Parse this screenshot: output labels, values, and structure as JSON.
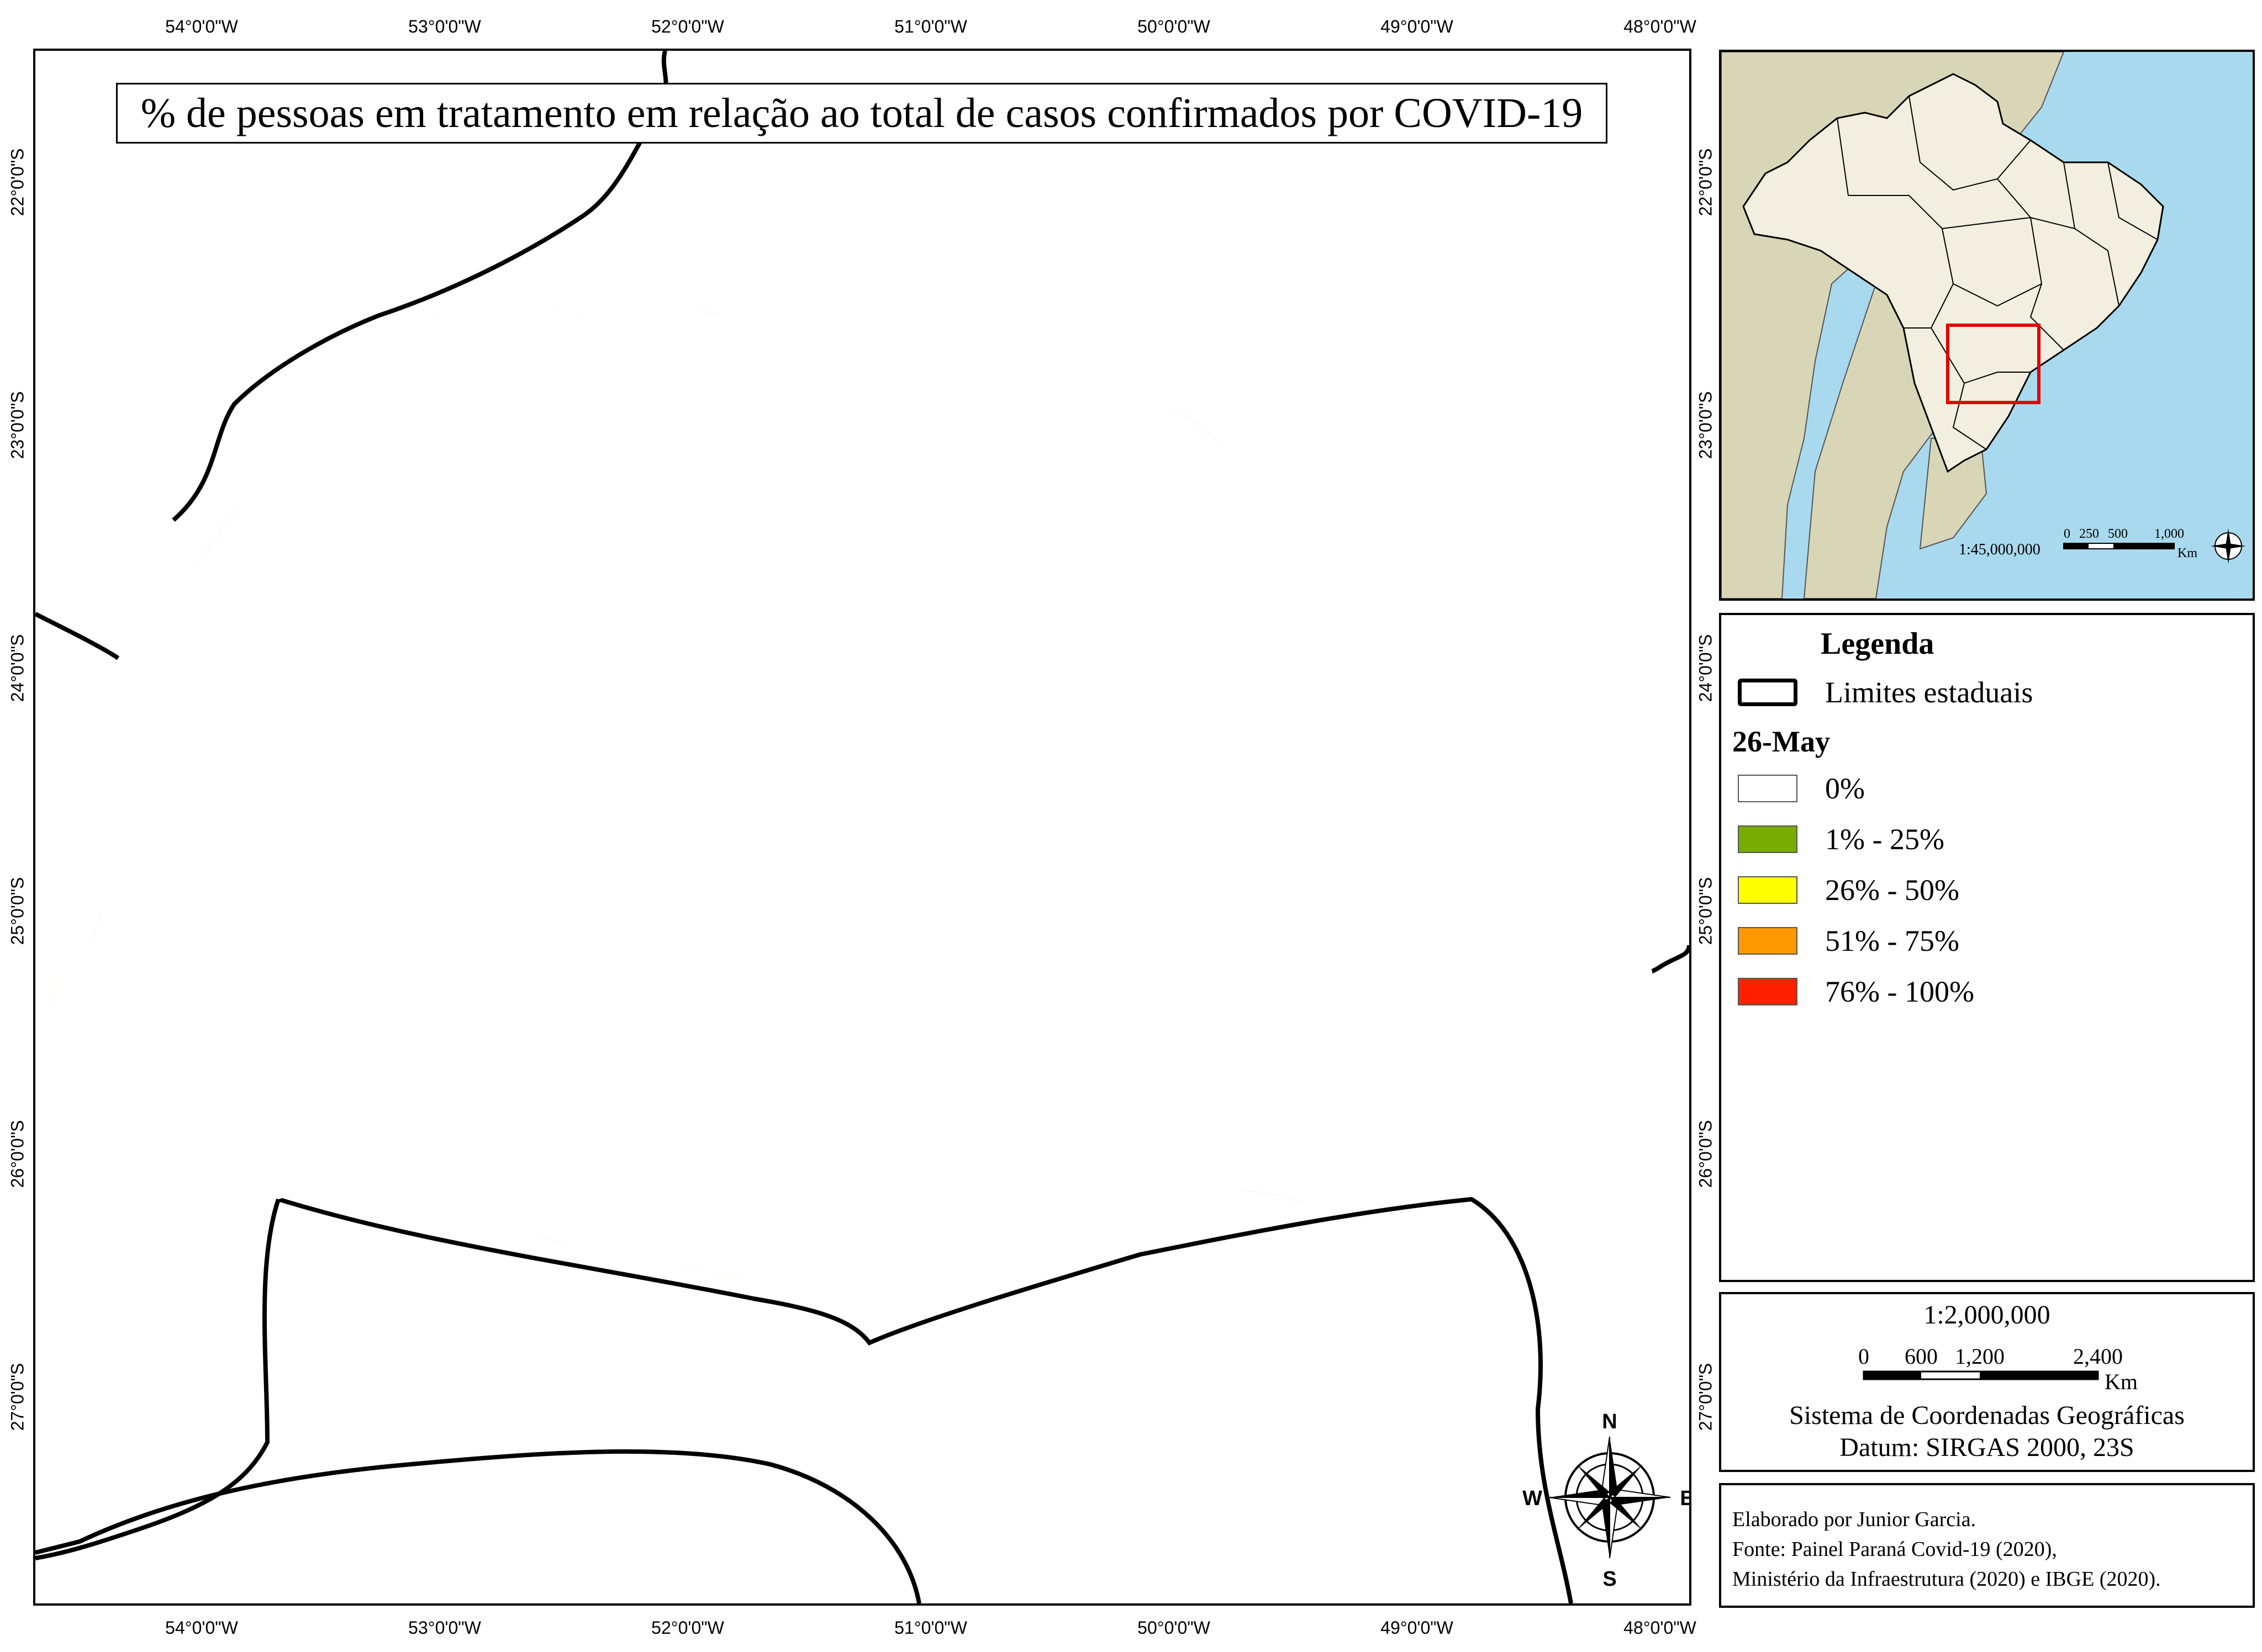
{
  "title": "% de pessoas em tratamento em relação ao total de casos confirmados por COVID-19",
  "graticule": {
    "longitudes": [
      "54°0'0\"W",
      "53°0'0\"W",
      "52°0'0\"W",
      "51°0'0\"W",
      "50°0'0\"W",
      "49°0'0\"W",
      "48°0'0\"W"
    ],
    "latitudes": [
      "22°0'0\"S",
      "23°0'0\"S",
      "24°0'0\"S",
      "25°0'0\"S",
      "26°0'0\"S",
      "27°0'0\"S"
    ]
  },
  "legend": {
    "title": "Legenda",
    "boundary_label": "Limites estaduais",
    "date": "26-May",
    "classes": [
      {
        "label": "0%",
        "color": "#ffffff"
      },
      {
        "label": "1% - 25%",
        "color": "#7aab00"
      },
      {
        "label": "26% - 50%",
        "color": "#ffff00"
      },
      {
        "label": "51% - 75%",
        "color": "#ff9800"
      },
      {
        "label": "76% - 100%",
        "color": "#ff2000"
      }
    ]
  },
  "scale": {
    "ratio": "1:2,000,000",
    "ticks": [
      "0",
      "600",
      "1,200",
      "2,400"
    ],
    "unit": "Km",
    "crs": "Sistema de Coordenadas Geográficas",
    "datum": "Datum: SIRGAS 2000, 23S"
  },
  "inset": {
    "scale_ratio": "1:45,000,000",
    "ticks": [
      "0",
      "250",
      "500",
      "1,000"
    ],
    "unit": "Km",
    "land_color": "#f2efe0",
    "neighbor_color": "#d8d6b6",
    "ocean_color": "#a9d9ee",
    "highlight_color": "#e00000"
  },
  "compass": {
    "n": "N",
    "s": "S",
    "e": "E",
    "w": "W"
  },
  "credits": [
    "Elaborado por Junior Garcia.",
    "Fonte: Painel Paraná Covid-19 (2020),",
    "Ministério da Infraestrutura (2020) e IBGE (2020)."
  ]
}
